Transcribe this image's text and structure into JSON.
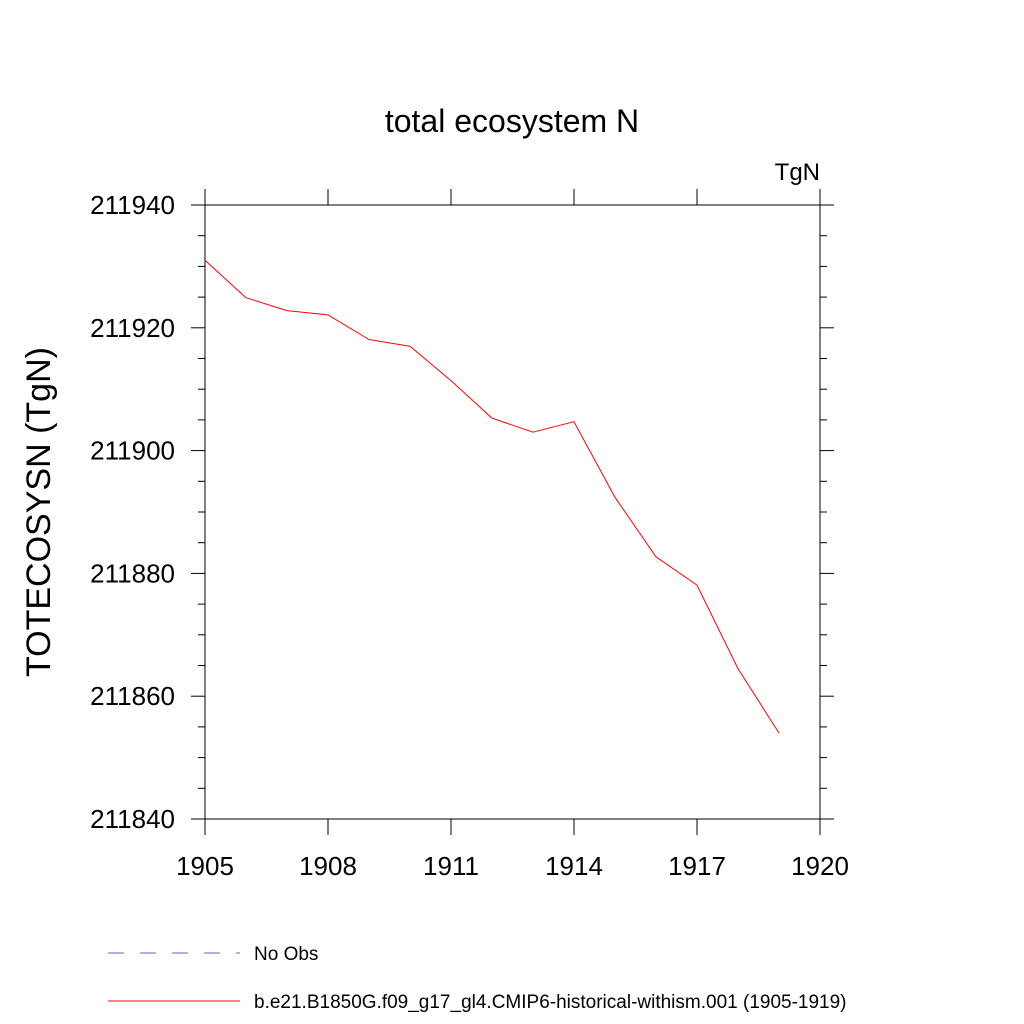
{
  "chart_data": {
    "type": "line",
    "title": "total ecosystem N",
    "units_label": "TgN",
    "xlabel": "",
    "ylabel": "TOTECOSYSN  (TgN)",
    "xlim": [
      1905,
      1920
    ],
    "ylim": [
      211840,
      211940
    ],
    "xticks": [
      1905,
      1908,
      1911,
      1914,
      1917,
      1920
    ],
    "yticks": [
      211840,
      211860,
      211880,
      211900,
      211920,
      211940
    ],
    "grid": false,
    "legend_position": "bottom-left",
    "series": [
      {
        "name": "b.e21.B1850G.f09_g17_gl4.CMIP6-historical-withism.001 (1905-1919)",
        "color": "#ff0000",
        "dash": "solid",
        "x": [
          1905,
          1906,
          1907,
          1908,
          1909,
          1910,
          1911,
          1912,
          1913,
          1914,
          1915,
          1916,
          1917,
          1918,
          1919
        ],
        "y": [
          211931.0,
          211924.9,
          211922.8,
          211922.1,
          211918.1,
          211917.0,
          211911.4,
          211905.3,
          211903.0,
          211904.7,
          211892.4,
          211882.7,
          211878.1,
          211864.5,
          211854.0
        ]
      }
    ],
    "legend": [
      {
        "label": "No Obs",
        "color": "#6a5acd",
        "dash": "dashed"
      },
      {
        "label": "b.e21.B1850G.f09_g17_gl4.CMIP6-historical-withism.001 (1905-1919)",
        "color": "#ff0000",
        "dash": "solid"
      }
    ]
  }
}
